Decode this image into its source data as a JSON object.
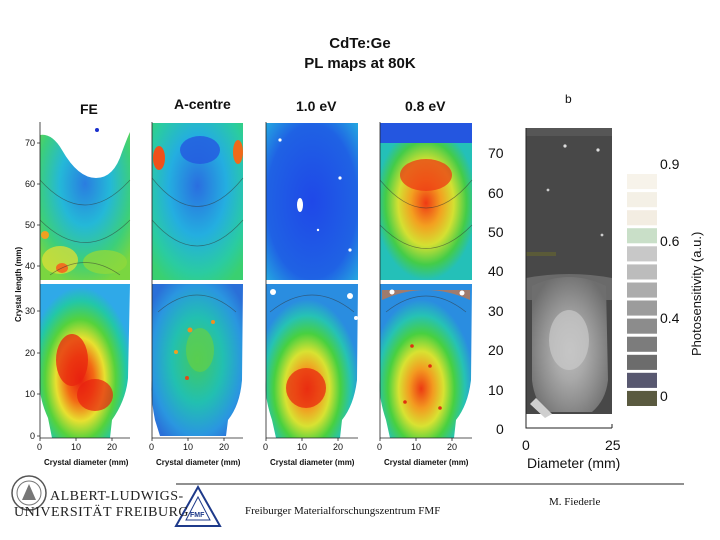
{
  "title": {
    "line1": "CdTe:Ge",
    "line2": "PL maps at 80K"
  },
  "panel_label": "b",
  "chart_data": [
    {
      "type": "heatmap",
      "title": "FE",
      "xlabel": "Crystal diameter (mm)",
      "ylabel": "Crystal length (mm)",
      "xticks": [
        "0",
        "10",
        "20"
      ],
      "yticks": [
        "0",
        "10",
        "20",
        "30",
        "40",
        "50",
        "60",
        "70"
      ],
      "xlim": [
        0,
        25
      ],
      "ylim": [
        0,
        75
      ]
    },
    {
      "type": "heatmap",
      "title": "A-centre",
      "xlabel": "Crystal diameter (mm)",
      "xticks": [
        "0",
        "10",
        "20"
      ],
      "xlim": [
        0,
        25
      ],
      "ylim": [
        0,
        75
      ]
    },
    {
      "type": "heatmap",
      "title": "1.0 eV",
      "xlabel": "Crystal diameter (mm)",
      "xticks": [
        "0",
        "10",
        "20"
      ],
      "xlim": [
        0,
        25
      ],
      "ylim": [
        0,
        75
      ]
    },
    {
      "type": "heatmap",
      "title": "0.8 eV",
      "xlabel": "Crystal diameter (mm)",
      "xticks": [
        "0",
        "10",
        "20"
      ],
      "xlim": [
        0,
        25
      ],
      "ylim": [
        0,
        75
      ]
    },
    {
      "type": "heatmap",
      "title": "",
      "xlabel": "Diameter (mm)",
      "xticks": [
        "0",
        "25"
      ],
      "yticks": [
        "0",
        "10",
        "20",
        "30",
        "40",
        "50",
        "60",
        "70"
      ],
      "xlim": [
        0,
        25
      ],
      "ylim": [
        0,
        75
      ],
      "colorbar": {
        "label": "Photosensitivity (a.u.)",
        "ticks": [
          "0.9",
          "0.6",
          "0.4",
          "0"
        ],
        "colors": [
          "#f7f3ea",
          "#f4f0e6",
          "#f3ede2",
          "#c9dfc8",
          "#c8c8c8",
          "#bcbcbc",
          "#acacac",
          "#9c9c9c",
          "#8c8c8c",
          "#7c7c7c",
          "#6c6c6c",
          "#585870",
          "#5a5a40"
        ]
      }
    }
  ],
  "footer": {
    "university_line1": "ALBERT-LUDWIGS-",
    "university_line2": "UNIVERSITÄT FREIBURG",
    "fmf_logo": "FMF",
    "center": "Freiburger Materialforschungszentrum FMF",
    "author": "M. Fiederle"
  },
  "colors": {
    "low": "#2233cc",
    "mid": "#33cc44",
    "high": "#ee2211"
  }
}
